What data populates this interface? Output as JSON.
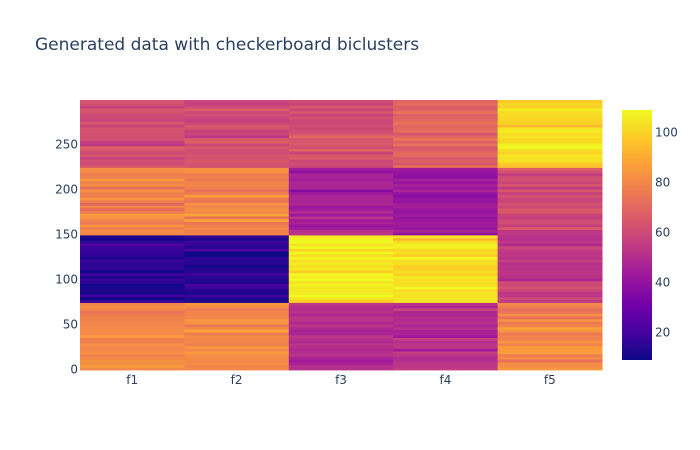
{
  "chart_data": {
    "type": "heatmap",
    "title": "Generated data with checkerboard biclusters",
    "xlabel": "",
    "ylabel": "",
    "categories": [
      "f1",
      "f2",
      "f3",
      "f4",
      "f5"
    ],
    "y_range": [
      0,
      299
    ],
    "y_ticks": [
      0,
      50,
      100,
      150,
      200,
      250
    ],
    "row_blocks": [
      {
        "rows": [
          0,
          75
        ],
        "values": [
          80,
          80,
          50,
          50,
          80
        ]
      },
      {
        "rows": [
          75,
          150
        ],
        "values": [
          15,
          15,
          105,
          102,
          55
        ]
      },
      {
        "rows": [
          150,
          225
        ],
        "values": [
          80,
          80,
          45,
          42,
          60
        ]
      },
      {
        "rows": [
          225,
          300
        ],
        "values": [
          62,
          62,
          62,
          68,
          102
        ]
      }
    ],
    "colorbar": {
      "min": 9,
      "max": 109,
      "ticks": [
        20,
        40,
        60,
        80,
        100
      ],
      "colorscale": [
        "#0d0887",
        "#46039f",
        "#7201a8",
        "#9c179e",
        "#bd3786",
        "#d8576b",
        "#ed7953",
        "#fb9f3a",
        "#fdca26",
        "#f0f921"
      ]
    },
    "grid": false
  }
}
